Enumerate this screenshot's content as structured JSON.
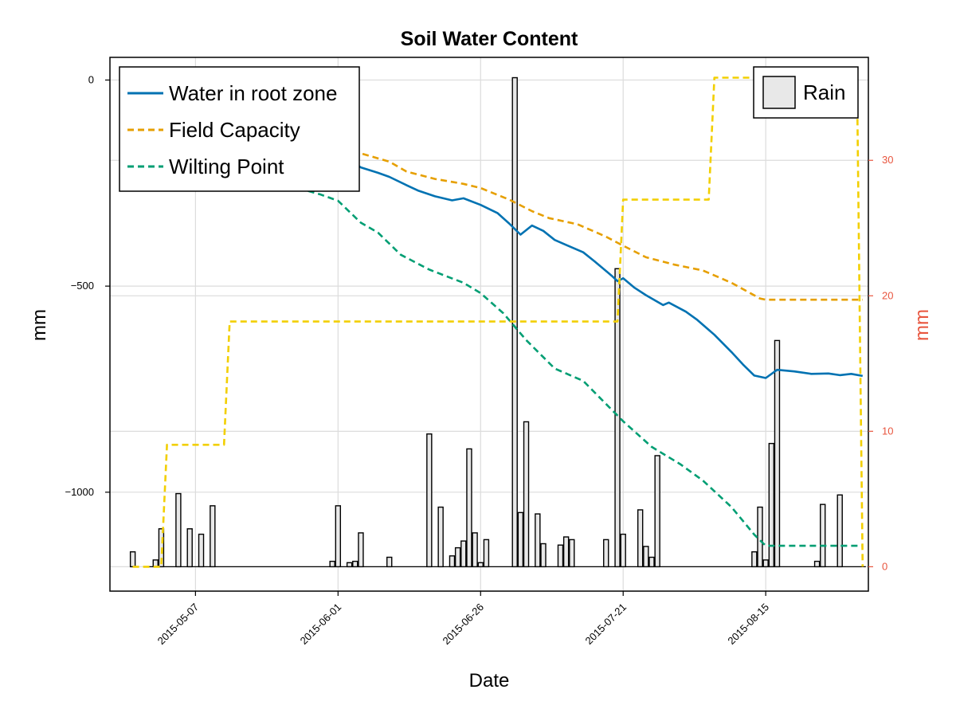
{
  "chart_data": {
    "type": "line",
    "title": "Soil Water Content",
    "xlabel": "Date",
    "ylabel_left": "mm",
    "ylabel_right": "mm",
    "x_ticks": [
      "2015-05-07",
      "2015-06-01",
      "2015-06-26",
      "2015-07-21",
      "2015-08-15"
    ],
    "x_range": [
      "2015-04-22",
      "2015-09-02"
    ],
    "y_left_range": [
      -1240,
      55
    ],
    "y_left_ticks": [
      0,
      -500,
      -1000
    ],
    "y_right_range": [
      -1.8,
      37.6
    ],
    "y_right_ticks": [
      0,
      10,
      20,
      30
    ],
    "grid": true,
    "colors": {
      "water": "#0072b2",
      "field_capacity": "#e69f00",
      "wilting_point": "#009e73",
      "step": "#f2cf00",
      "rain_fill": "#e8e8e8",
      "right_axis": "#e8553e"
    },
    "legend_left": [
      "Water in root zone",
      "Field Capacity",
      "Wilting Point"
    ],
    "legend_right": [
      "Rain"
    ],
    "series": [
      {
        "name": "Water in root zone",
        "axis": "left",
        "style": "solid",
        "points": [
          [
            "2015-05-31",
            -178
          ],
          [
            "2015-06-03",
            -195
          ],
          [
            "2015-06-05",
            -212
          ],
          [
            "2015-06-08",
            -225
          ],
          [
            "2015-06-10",
            -235
          ],
          [
            "2015-06-13",
            -255
          ],
          [
            "2015-06-15",
            -268
          ],
          [
            "2015-06-18",
            -282
          ],
          [
            "2015-06-21",
            -292
          ],
          [
            "2015-06-23",
            -287
          ],
          [
            "2015-06-26",
            -303
          ],
          [
            "2015-06-29",
            -323
          ],
          [
            "2015-07-01",
            -348
          ],
          [
            "2015-07-03",
            -375
          ],
          [
            "2015-07-05",
            -353
          ],
          [
            "2015-07-07",
            -366
          ],
          [
            "2015-07-09",
            -388
          ],
          [
            "2015-07-11",
            -400
          ],
          [
            "2015-07-14",
            -418
          ],
          [
            "2015-07-16",
            -440
          ],
          [
            "2015-07-19",
            -475
          ],
          [
            "2015-07-20",
            -488
          ],
          [
            "2015-07-21",
            -481
          ],
          [
            "2015-07-23",
            -504
          ],
          [
            "2015-07-25",
            -522
          ],
          [
            "2015-07-28",
            -546
          ],
          [
            "2015-07-29",
            -540
          ],
          [
            "2015-08-01",
            -562
          ],
          [
            "2015-08-03",
            -582
          ],
          [
            "2015-08-06",
            -618
          ],
          [
            "2015-08-09",
            -660
          ],
          [
            "2015-08-11",
            -690
          ],
          [
            "2015-08-13",
            -717
          ],
          [
            "2015-08-15",
            -723
          ],
          [
            "2015-08-17",
            -703
          ],
          [
            "2015-08-20",
            -707
          ],
          [
            "2015-08-23",
            -713
          ],
          [
            "2015-08-26",
            -712
          ],
          [
            "2015-08-28",
            -716
          ],
          [
            "2015-08-30",
            -713
          ],
          [
            "2015-09-01",
            -718
          ]
        ]
      },
      {
        "name": "Field Capacity",
        "axis": "left",
        "style": "dashed",
        "points": [
          [
            "2015-06-02",
            -158
          ],
          [
            "2015-06-05",
            -178
          ],
          [
            "2015-06-10",
            -198
          ],
          [
            "2015-06-13",
            -222
          ],
          [
            "2015-06-18",
            -240
          ],
          [
            "2015-06-23",
            -252
          ],
          [
            "2015-06-26",
            -262
          ],
          [
            "2015-07-01",
            -290
          ],
          [
            "2015-07-05",
            -318
          ],
          [
            "2015-07-08",
            -335
          ],
          [
            "2015-07-13",
            -350
          ],
          [
            "2015-07-18",
            -380
          ],
          [
            "2015-07-21",
            -402
          ],
          [
            "2015-07-25",
            -430
          ],
          [
            "2015-07-30",
            -448
          ],
          [
            "2015-08-04",
            -462
          ],
          [
            "2015-08-09",
            -492
          ],
          [
            "2015-08-14",
            -530
          ],
          [
            "2015-08-15",
            -533
          ],
          [
            "2015-09-01",
            -533
          ]
        ]
      },
      {
        "name": "Wilting Point",
        "axis": "left",
        "style": "dashed",
        "points": [
          [
            "2015-05-25",
            -262
          ],
          [
            "2015-05-29",
            -278
          ],
          [
            "2015-06-01",
            -293
          ],
          [
            "2015-06-05",
            -346
          ],
          [
            "2015-06-08",
            -370
          ],
          [
            "2015-06-12",
            -424
          ],
          [
            "2015-06-17",
            -460
          ],
          [
            "2015-06-23",
            -492
          ],
          [
            "2015-06-26",
            -517
          ],
          [
            "2015-06-30",
            -566
          ],
          [
            "2015-07-04",
            -631
          ],
          [
            "2015-07-09",
            -700
          ],
          [
            "2015-07-14",
            -730
          ],
          [
            "2015-07-17",
            -772
          ],
          [
            "2015-07-21",
            -828
          ],
          [
            "2015-07-26",
            -890
          ],
          [
            "2015-07-31",
            -932
          ],
          [
            "2015-08-04",
            -972
          ],
          [
            "2015-08-09",
            -1036
          ],
          [
            "2015-08-13",
            -1103
          ],
          [
            "2015-08-15",
            -1130
          ],
          [
            "2015-09-01",
            -1130
          ]
        ]
      },
      {
        "name": "Step",
        "axis": "right",
        "style": "dashed",
        "points": [
          [
            "2015-04-26",
            0
          ],
          [
            "2015-05-01",
            0
          ],
          [
            "2015-05-02",
            9
          ],
          [
            "2015-05-12",
            9
          ],
          [
            "2015-05-13",
            18.1
          ],
          [
            "2015-07-20",
            18.1
          ],
          [
            "2015-07-21",
            27.1
          ],
          [
            "2015-08-05",
            27.1
          ],
          [
            "2015-08-06",
            36.1
          ],
          [
            "2015-08-31",
            36.1
          ],
          [
            "2015-09-01",
            0
          ]
        ]
      }
    ],
    "rain": [
      [
        "2015-04-26",
        1.1
      ],
      [
        "2015-04-30",
        0.5
      ],
      [
        "2015-05-01",
        2.8
      ],
      [
        "2015-05-04",
        5.4
      ],
      [
        "2015-05-06",
        2.8
      ],
      [
        "2015-05-08",
        2.4
      ],
      [
        "2015-05-10",
        4.5
      ],
      [
        "2015-05-31",
        0.4
      ],
      [
        "2015-06-01",
        4.5
      ],
      [
        "2015-06-03",
        0.3
      ],
      [
        "2015-06-04",
        0.4
      ],
      [
        "2015-06-05",
        2.5
      ],
      [
        "2015-06-10",
        0.7
      ],
      [
        "2015-06-17",
        9.8
      ],
      [
        "2015-06-19",
        4.4
      ],
      [
        "2015-06-21",
        0.8
      ],
      [
        "2015-06-22",
        1.4
      ],
      [
        "2015-06-23",
        1.9
      ],
      [
        "2015-06-24",
        8.7
      ],
      [
        "2015-06-25",
        2.5
      ],
      [
        "2015-06-26",
        0.3
      ],
      [
        "2015-06-27",
        2.0
      ],
      [
        "2015-07-02",
        36.1
      ],
      [
        "2015-07-03",
        4.0
      ],
      [
        "2015-07-04",
        10.7
      ],
      [
        "2015-07-06",
        3.9
      ],
      [
        "2015-07-07",
        1.7
      ],
      [
        "2015-07-10",
        1.6
      ],
      [
        "2015-07-11",
        2.2
      ],
      [
        "2015-07-12",
        2.0
      ],
      [
        "2015-07-18",
        2.0
      ],
      [
        "2015-07-20",
        22.0
      ],
      [
        "2015-07-21",
        2.4
      ],
      [
        "2015-07-24",
        4.2
      ],
      [
        "2015-07-25",
        1.5
      ],
      [
        "2015-07-26",
        0.7
      ],
      [
        "2015-07-27",
        8.2
      ],
      [
        "2015-08-13",
        1.1
      ],
      [
        "2015-08-14",
        4.4
      ],
      [
        "2015-08-15",
        0.5
      ],
      [
        "2015-08-16",
        9.1
      ],
      [
        "2015-08-17",
        16.7
      ],
      [
        "2015-08-24",
        0.4
      ],
      [
        "2015-08-25",
        4.6
      ],
      [
        "2015-08-28",
        5.3
      ]
    ]
  }
}
